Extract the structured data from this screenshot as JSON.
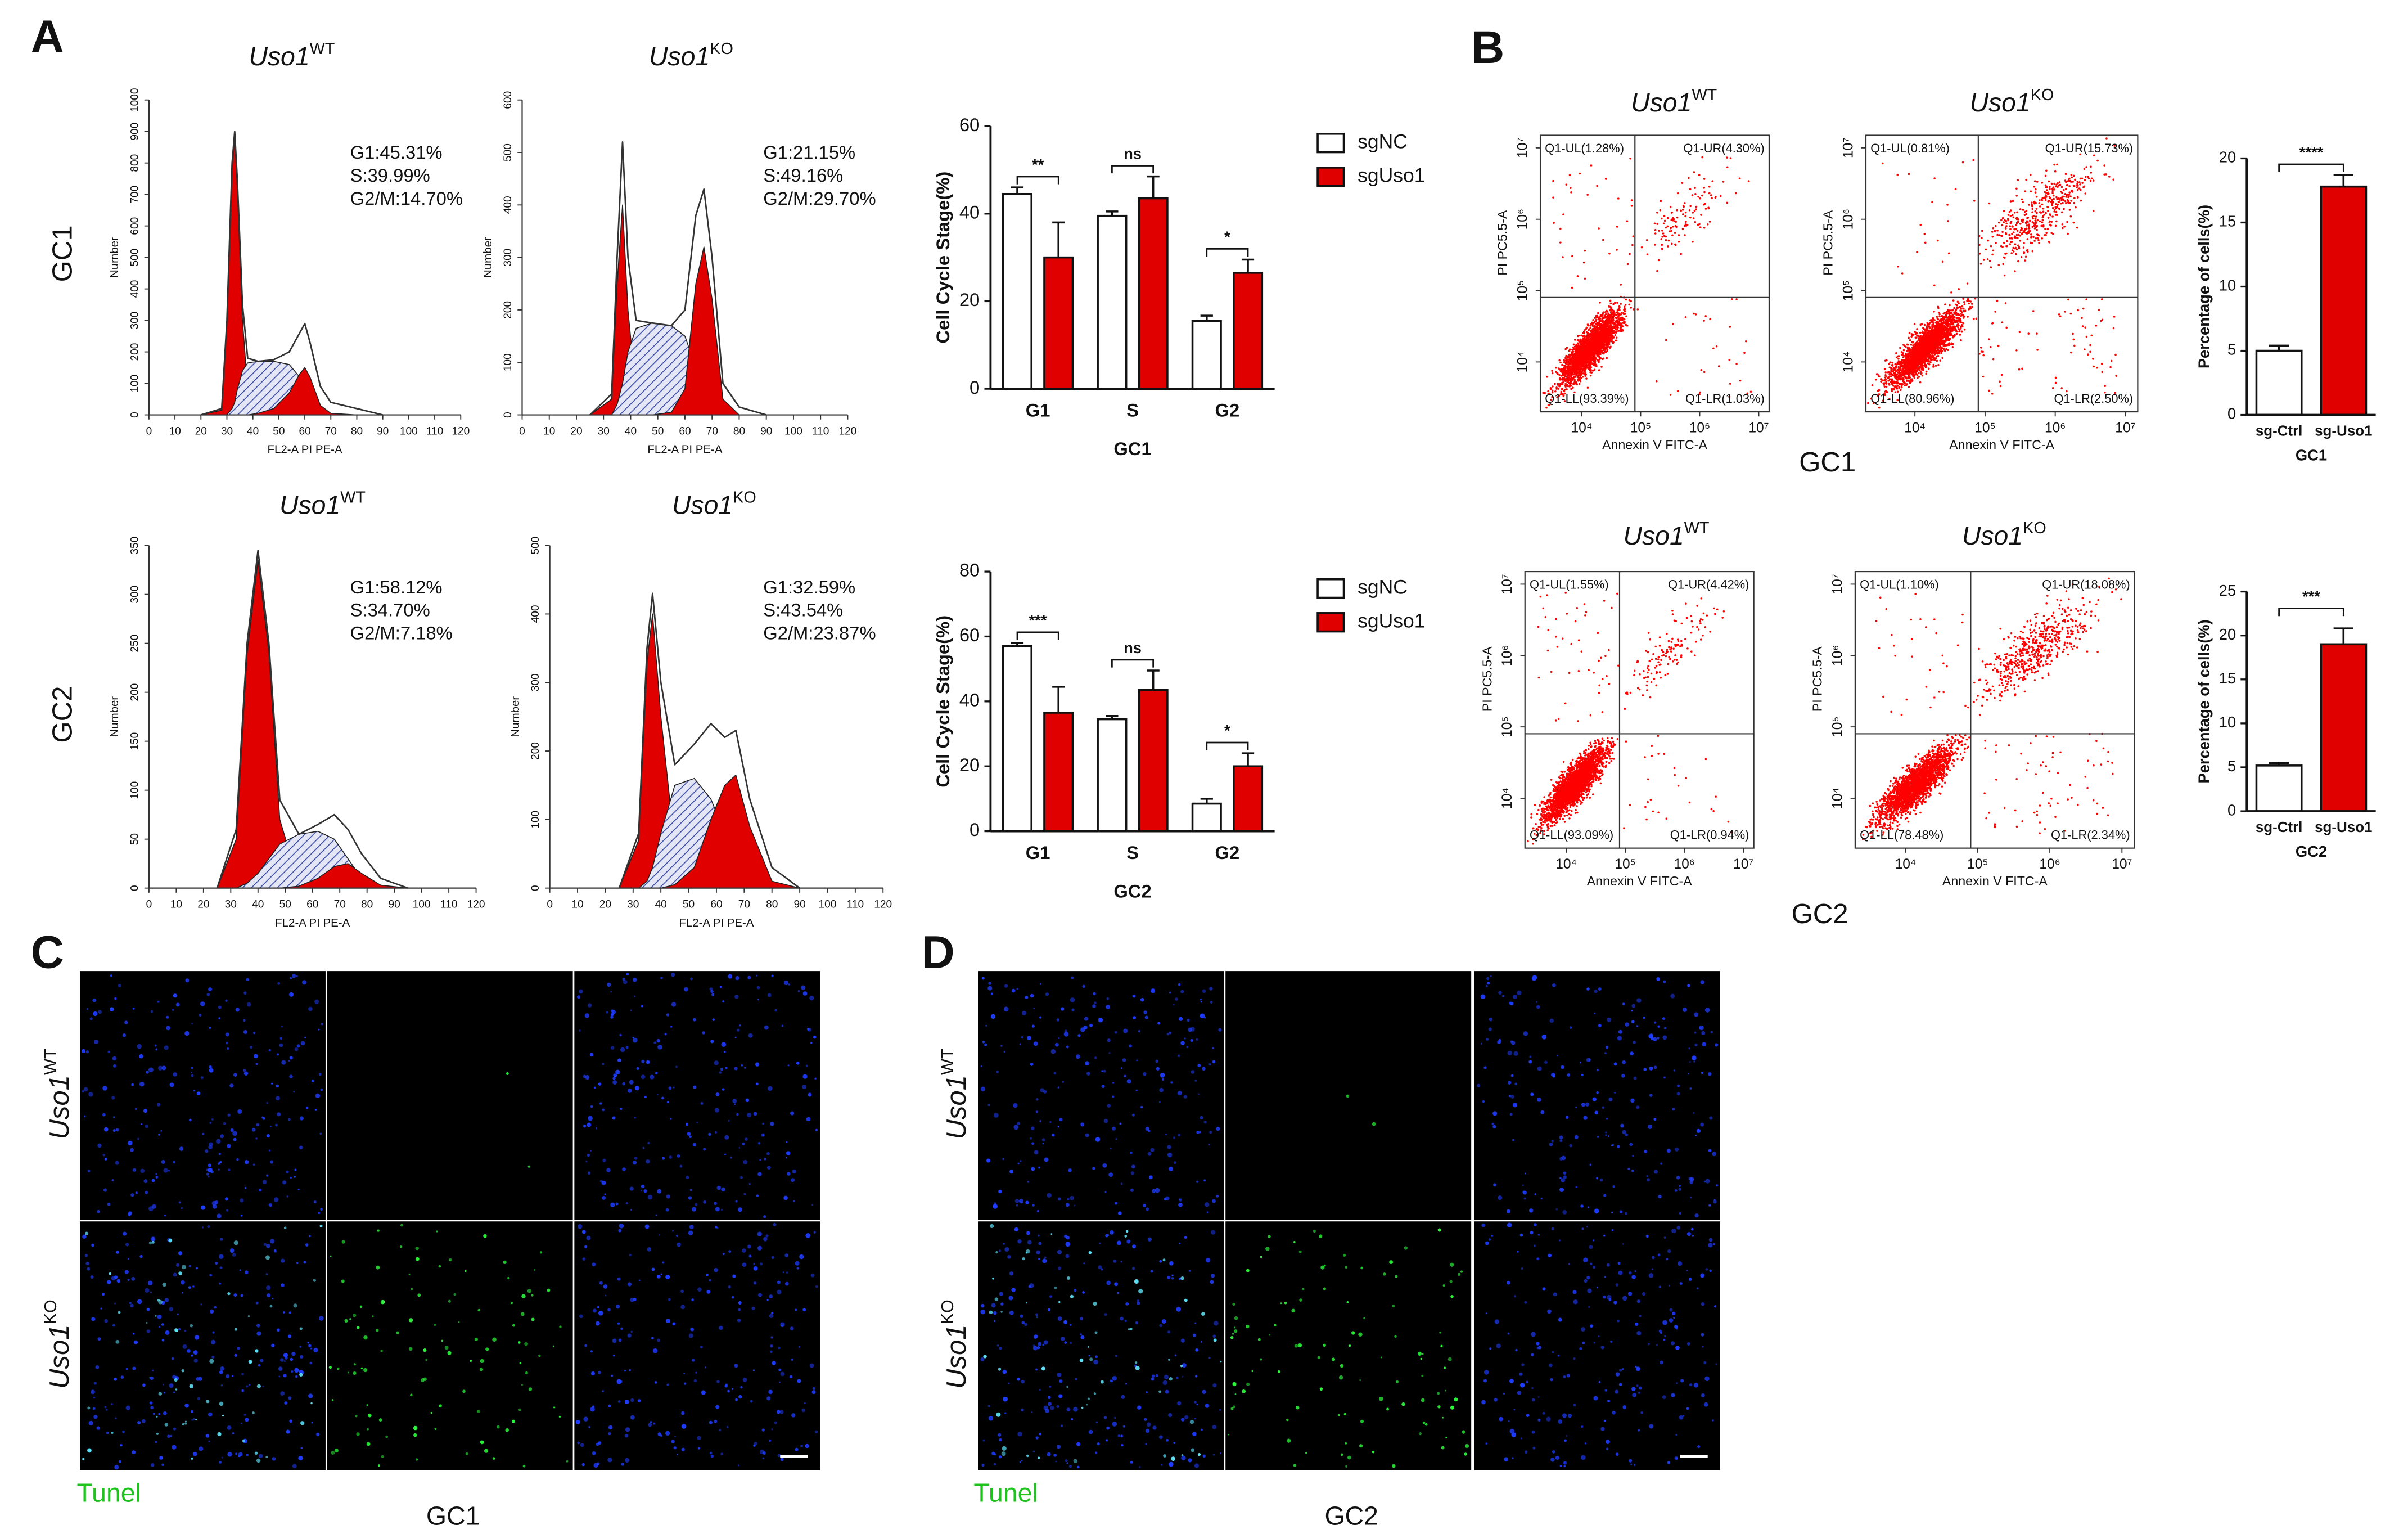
{
  "chart_data": [
    {
      "type": "line",
      "title": "Uso1",
      "title_sup": "WT",
      "xlabel": "FL2-A PI PE-A",
      "ylabel": "Number",
      "xlim": [
        0,
        120
      ],
      "xticks": [
        0,
        10,
        20,
        30,
        40,
        50,
        60,
        70,
        80,
        90,
        100,
        110,
        120
      ],
      "ylim": [
        0,
        1000
      ],
      "yticks": [
        0,
        100,
        200,
        300,
        400,
        500,
        600,
        700,
        800,
        900,
        1000
      ],
      "x": [
        20,
        28,
        30,
        32,
        33,
        34,
        36,
        38,
        42,
        48,
        54,
        58,
        60,
        62,
        66,
        70,
        80,
        90
      ],
      "series": [
        {
          "color": "#e00000",
          "values": [
            0,
            15,
            290,
            780,
            880,
            720,
            300,
            80,
            5,
            0,
            0,
            0,
            0,
            0,
            0,
            0,
            0,
            0
          ]
        },
        {
          "color": "#3b4ea6",
          "hatch": true,
          "values": [
            0,
            0,
            0,
            20,
            40,
            80,
            140,
            165,
            170,
            170,
            160,
            120,
            80,
            40,
            5,
            0,
            0,
            0
          ]
        },
        {
          "color": "#e00000",
          "values": [
            0,
            0,
            0,
            0,
            0,
            0,
            0,
            0,
            5,
            20,
            70,
            130,
            150,
            120,
            30,
            5,
            0,
            0
          ]
        },
        {
          "color": "#333333",
          "outline": true,
          "values": [
            0,
            20,
            300,
            800,
            900,
            750,
            350,
            180,
            170,
            175,
            200,
            260,
            290,
            230,
            90,
            40,
            20,
            0
          ]
        }
      ],
      "annotation": [
        "G1:45.31%",
        "S:39.99%",
        "G2/M:14.70%"
      ]
    },
    {
      "type": "line",
      "title": "Uso1",
      "title_sup": "KO",
      "xlabel": "FL2-A PI PE-A",
      "ylabel": "Number",
      "xlim": [
        0,
        120
      ],
      "xticks": [
        0,
        10,
        20,
        30,
        40,
        50,
        60,
        70,
        80,
        90,
        100,
        110,
        120
      ],
      "ylim": [
        0,
        600
      ],
      "yticks": [
        0,
        100,
        200,
        300,
        400,
        500,
        600
      ],
      "x": [
        25,
        33,
        35,
        37,
        39,
        42,
        48,
        55,
        60,
        64,
        67,
        70,
        74,
        80,
        90
      ],
      "series": [
        {
          "color": "#e00000",
          "values": [
            0,
            30,
            250,
            400,
            200,
            40,
            0,
            0,
            0,
            0,
            0,
            0,
            0,
            0,
            0
          ]
        },
        {
          "color": "#3b4ea6",
          "hatch": true,
          "values": [
            0,
            0,
            20,
            60,
            120,
            165,
            175,
            170,
            150,
            90,
            40,
            10,
            0,
            0,
            0
          ]
        },
        {
          "color": "#e00000",
          "values": [
            0,
            0,
            0,
            0,
            0,
            0,
            0,
            5,
            50,
            250,
            320,
            220,
            30,
            0,
            0
          ]
        },
        {
          "color": "#333333",
          "outline": true,
          "values": [
            0,
            40,
            300,
            520,
            300,
            180,
            175,
            170,
            200,
            380,
            430,
            300,
            60,
            15,
            0
          ]
        }
      ],
      "annotation": [
        "G1:21.15%",
        "S:49.16%",
        "G2/M:29.70%"
      ]
    },
    {
      "type": "line",
      "title": "Uso1",
      "title_sup": "WT",
      "xlabel": "FL2-A PI PE-A",
      "ylabel": "Number",
      "xlim": [
        0,
        120
      ],
      "xticks": [
        0,
        10,
        20,
        30,
        40,
        50,
        60,
        70,
        80,
        90,
        100,
        110,
        120
      ],
      "ylim": [
        0,
        350
      ],
      "yticks": [
        0,
        50,
        100,
        150,
        200,
        250,
        300,
        350
      ],
      "x": [
        25,
        32,
        36,
        40,
        44,
        48,
        55,
        62,
        68,
        73,
        78,
        85,
        95
      ],
      "series": [
        {
          "color": "#e00000",
          "values": [
            0,
            50,
            240,
            335,
            240,
            70,
            5,
            0,
            0,
            0,
            0,
            0,
            0
          ]
        },
        {
          "color": "#3b4ea6",
          "hatch": true,
          "values": [
            0,
            0,
            5,
            15,
            30,
            45,
            55,
            58,
            50,
            30,
            10,
            2,
            0
          ]
        },
        {
          "color": "#e00000",
          "values": [
            0,
            0,
            0,
            0,
            0,
            0,
            2,
            10,
            22,
            25,
            15,
            3,
            0
          ]
        },
        {
          "color": "#333333",
          "outline": true,
          "values": [
            0,
            60,
            250,
            345,
            250,
            90,
            55,
            65,
            75,
            60,
            35,
            10,
            0
          ]
        }
      ],
      "annotation": [
        "G1:58.12%",
        "S:34.70%",
        "G2/M:7.18%"
      ]
    },
    {
      "type": "line",
      "title": "Uso1",
      "title_sup": "KO",
      "xlabel": "FL2-A PI PE-A",
      "ylabel": "Number",
      "xlim": [
        0,
        120
      ],
      "xticks": [
        0,
        10,
        20,
        30,
        40,
        50,
        60,
        70,
        80,
        90,
        100,
        110,
        120
      ],
      "ylim": [
        0,
        500
      ],
      "yticks": [
        0,
        100,
        200,
        300,
        400,
        500
      ],
      "x": [
        25,
        32,
        35,
        37,
        40,
        45,
        52,
        58,
        63,
        67,
        72,
        80,
        90
      ],
      "series": [
        {
          "color": "#e00000",
          "values": [
            0,
            70,
            330,
            400,
            250,
            60,
            0,
            0,
            0,
            0,
            0,
            0,
            0
          ]
        },
        {
          "color": "#3b4ea6",
          "hatch": true,
          "values": [
            0,
            0,
            10,
            30,
            80,
            150,
            160,
            130,
            80,
            40,
            10,
            0,
            0
          ]
        },
        {
          "color": "#e00000",
          "values": [
            0,
            0,
            0,
            0,
            0,
            5,
            30,
            100,
            150,
            165,
            90,
            10,
            0
          ]
        },
        {
          "color": "#333333",
          "outline": true,
          "values": [
            0,
            80,
            350,
            430,
            300,
            180,
            210,
            240,
            220,
            230,
            130,
            30,
            0
          ]
        }
      ],
      "annotation": [
        "G1:32.59%",
        "S:43.54%",
        "G2/M:23.87%"
      ]
    },
    {
      "type": "bar",
      "ylabel": "Cell Cycle Stage(%)",
      "xlabel": "GC1",
      "categories": [
        "G1",
        "S",
        "G2"
      ],
      "series": [
        {
          "name": "sgNC",
          "color": "#ffffff",
          "values": [
            44.5,
            39.5,
            15.5
          ],
          "errors": [
            1.5,
            1,
            1.2
          ]
        },
        {
          "name": "sgUso1",
          "color": "#e00000",
          "values": [
            30,
            43.5,
            26.5
          ],
          "errors": [
            8,
            5,
            3
          ]
        }
      ],
      "ylim": [
        0,
        60
      ],
      "yticks": [
        0,
        20,
        40,
        60
      ],
      "significance": [
        "**",
        "ns",
        "*"
      ]
    },
    {
      "type": "bar",
      "ylabel": "Cell Cycle Stage(%)",
      "xlabel": "GC2",
      "categories": [
        "G1",
        "S",
        "G2"
      ],
      "series": [
        {
          "name": "sgNC",
          "color": "#ffffff",
          "values": [
            57,
            34.5,
            8.5
          ],
          "errors": [
            1,
            1,
            1.5
          ]
        },
        {
          "name": "sgUso1",
          "color": "#e00000",
          "values": [
            36.5,
            43.5,
            20
          ],
          "errors": [
            8,
            6,
            4
          ]
        }
      ],
      "ylim": [
        0,
        80
      ],
      "yticks": [
        0,
        20,
        40,
        60,
        80
      ],
      "significance": [
        "***",
        "ns",
        "*"
      ]
    },
    {
      "type": "scatter",
      "title": "Uso1",
      "title_sup": "WT",
      "xlabel": "Annexin V FITC-A",
      "ylabel": "PI PC5.5-A",
      "log": true,
      "color": "#ff0000",
      "xlim": [
        2000,
        15000000
      ],
      "ylim": [
        2000,
        15000000
      ],
      "xticks": [
        {
          "value": 10000,
          "label": "10⁴"
        },
        {
          "value": 100000,
          "label": "10⁵"
        },
        {
          "value": 1000000,
          "label": "10⁶"
        },
        {
          "value": 10000000,
          "label": "10⁷"
        }
      ],
      "yticks": [
        {
          "value": 10000,
          "label": "10⁴"
        },
        {
          "value": 100000,
          "label": "10⁵"
        },
        {
          "value": 1000000,
          "label": "10⁶"
        },
        {
          "value": 10000000,
          "label": "10⁷"
        }
      ],
      "gate_x": 80000,
      "gate_y": 80000,
      "quadrants": {
        "UL": "Q1-UL(1.28%)",
        "UR": "Q1-UR(4.30%)",
        "LL": "Q1-LL(93.39%)",
        "LR": "Q1-LR(1.03%)"
      }
    },
    {
      "type": "scatter",
      "title": "Uso1",
      "title_sup": "KO",
      "xlabel": "Annexin V FITC-A",
      "ylabel": "PI PC5.5-A",
      "log": true,
      "color": "#ff0000",
      "xlim": [
        2000,
        15000000
      ],
      "ylim": [
        2000,
        15000000
      ],
      "xticks": [
        {
          "value": 10000,
          "label": "10⁴"
        },
        {
          "value": 100000,
          "label": "10⁵"
        },
        {
          "value": 1000000,
          "label": "10⁶"
        },
        {
          "value": 10000000,
          "label": "10⁷"
        }
      ],
      "yticks": [
        {
          "value": 10000,
          "label": "10⁴"
        },
        {
          "value": 100000,
          "label": "10⁵"
        },
        {
          "value": 1000000,
          "label": "10⁶"
        },
        {
          "value": 10000000,
          "label": "10⁷"
        }
      ],
      "gate_x": 80000,
      "gate_y": 80000,
      "quadrants": {
        "UL": "Q1-UL(0.81%)",
        "UR": "Q1-UR(15.73%)",
        "LL": "Q1-LL(80.96%)",
        "LR": "Q1-LR(2.50%)"
      }
    },
    {
      "type": "scatter",
      "title": "Uso1",
      "title_sup": "WT",
      "xlabel": "Annexin V FITC-A",
      "ylabel": "PI PC5.5-A",
      "log": true,
      "color": "#ff0000",
      "xlim": [
        2000,
        15000000
      ],
      "ylim": [
        2000,
        15000000
      ],
      "xticks": [
        {
          "value": 10000,
          "label": "10⁴"
        },
        {
          "value": 100000,
          "label": "10⁵"
        },
        {
          "value": 1000000,
          "label": "10⁶"
        },
        {
          "value": 10000000,
          "label": "10⁷"
        }
      ],
      "yticks": [
        {
          "value": 10000,
          "label": "10⁴"
        },
        {
          "value": 100000,
          "label": "10⁵"
        },
        {
          "value": 1000000,
          "label": "10⁶"
        },
        {
          "value": 10000000,
          "label": "10⁷"
        }
      ],
      "gate_x": 80000,
      "gate_y": 80000,
      "quadrants": {
        "UL": "Q1-UL(1.55%)",
        "UR": "Q1-UR(4.42%)",
        "LL": "Q1-LL(93.09%)",
        "LR": "Q1-LR(0.94%)"
      }
    },
    {
      "type": "scatter",
      "title": "Uso1",
      "title_sup": "KO",
      "xlabel": "Annexin V FITC-A",
      "ylabel": "PI PC5.5-A",
      "log": true,
      "color": "#ff0000",
      "xlim": [
        2000,
        15000000
      ],
      "ylim": [
        2000,
        15000000
      ],
      "xticks": [
        {
          "value": 10000,
          "label": "10⁴"
        },
        {
          "value": 100000,
          "label": "10⁵"
        },
        {
          "value": 1000000,
          "label": "10⁶"
        },
        {
          "value": 10000000,
          "label": "10⁷"
        }
      ],
      "yticks": [
        {
          "value": 10000,
          "label": "10⁴"
        },
        {
          "value": 100000,
          "label": "10⁵"
        },
        {
          "value": 1000000,
          "label": "10⁶"
        },
        {
          "value": 10000000,
          "label": "10⁷"
        }
      ],
      "gate_x": 80000,
      "gate_y": 80000,
      "quadrants": {
        "UL": "Q1-UL(1.10%)",
        "UR": "Q1-UR(18.08%)",
        "LL": "Q1-LL(78.48%)",
        "LR": "Q1-LR(2.34%)"
      }
    },
    {
      "type": "bar",
      "ylabel": "Percentage of cells(%)",
      "xlabel": "GC1",
      "categories": [
        "sg-Ctrl",
        "sg-Uso1"
      ],
      "values": [
        5,
        17.8
      ],
      "errors": [
        0.4,
        0.9
      ],
      "colors": [
        "#ffffff",
        "#e00000"
      ],
      "ylim": [
        0,
        20
      ],
      "yticks": [
        0,
        5,
        10,
        15,
        20
      ],
      "significance": "****"
    },
    {
      "type": "bar",
      "ylabel": "Percentage of cells(%)",
      "xlabel": "GC2",
      "categories": [
        "sg-Ctrl",
        "sg-Uso1"
      ],
      "values": [
        5.2,
        19
      ],
      "errors": [
        0.3,
        1.8
      ],
      "colors": [
        "#ffffff",
        "#e00000"
      ],
      "ylim": [
        0,
        25
      ],
      "yticks": [
        0,
        5,
        10,
        15,
        20,
        25
      ],
      "significance": "***"
    }
  ],
  "labels": {
    "panel_a": "A",
    "panel_b": "B",
    "panel_c": "C",
    "panel_d": "D",
    "a_rows": [
      "GC1",
      "GC2"
    ],
    "b_captions": [
      "GC1",
      "GC2"
    ],
    "c_rows": [
      {
        "text": "Uso1",
        "sup": "WT"
      },
      {
        "text": "Uso1",
        "sup": "KO"
      }
    ],
    "d_rows": [
      {
        "text": "Uso1",
        "sup": "WT"
      },
      {
        "text": "Uso1",
        "sup": "KO"
      }
    ],
    "c_stain": "Tunel",
    "d_stain": "Tunel",
    "c_caption": "GC1",
    "d_caption": "GC2"
  }
}
